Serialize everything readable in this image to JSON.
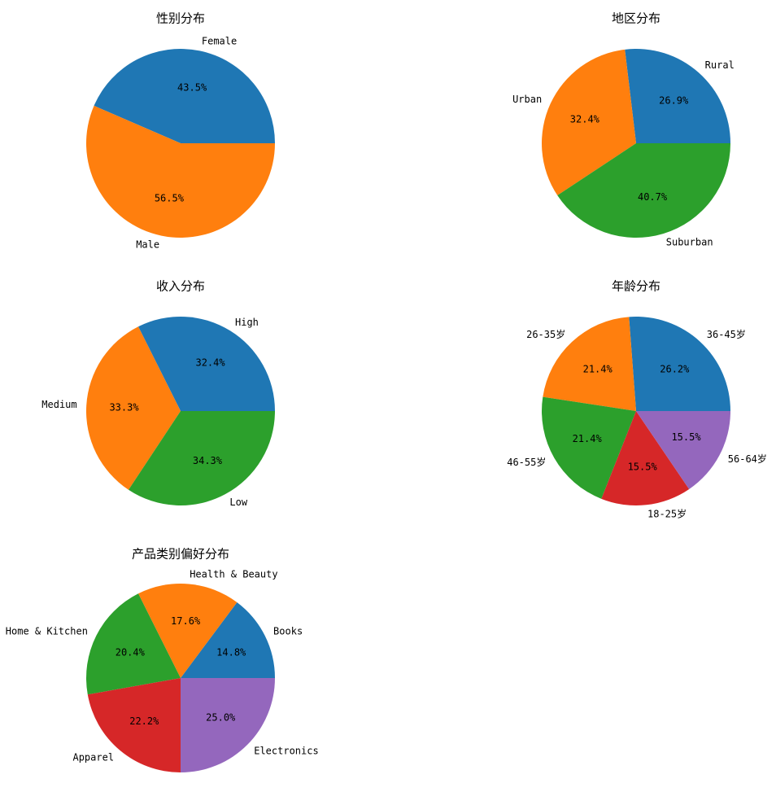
{
  "colors": {
    "blue": "#1f77b4",
    "orange": "#ff7f0e",
    "green": "#2ca02c",
    "red": "#d62728",
    "purple": "#9467bd"
  },
  "chart_data": [
    {
      "type": "pie",
      "title": "性别分布",
      "labels": [
        "Female",
        "Male"
      ],
      "values": [
        43.5,
        56.5
      ],
      "percent_labels": [
        "43.5%",
        "56.5%"
      ],
      "colors": [
        "#1f77b4",
        "#ff7f0e"
      ]
    },
    {
      "type": "pie",
      "title": "地区分布",
      "labels": [
        "Rural",
        "Urban",
        "Suburban"
      ],
      "values": [
        26.9,
        32.4,
        40.7
      ],
      "percent_labels": [
        "26.9%",
        "32.4%",
        "40.7%"
      ],
      "colors": [
        "#1f77b4",
        "#ff7f0e",
        "#2ca02c"
      ]
    },
    {
      "type": "pie",
      "title": "收入分布",
      "labels": [
        "High",
        "Medium",
        "Low"
      ],
      "values": [
        32.4,
        33.3,
        34.3
      ],
      "percent_labels": [
        "32.4%",
        "33.3%",
        "34.3%"
      ],
      "colors": [
        "#1f77b4",
        "#ff7f0e",
        "#2ca02c"
      ]
    },
    {
      "type": "pie",
      "title": "年龄分布",
      "labels": [
        "36-45岁",
        "26-35岁",
        "46-55岁",
        "18-25岁",
        "56-64岁"
      ],
      "values": [
        26.2,
        21.4,
        21.4,
        15.5,
        15.5
      ],
      "percent_labels": [
        "26.2%",
        "21.4%",
        "21.4%",
        "15.5%",
        "15.5%"
      ],
      "colors": [
        "#1f77b4",
        "#ff7f0e",
        "#2ca02c",
        "#d62728",
        "#9467bd"
      ]
    },
    {
      "type": "pie",
      "title": "产品类别偏好分布",
      "labels": [
        "Books",
        "Health & Beauty",
        "Home & Kitchen",
        "Apparel",
        "Electronics"
      ],
      "values": [
        14.8,
        17.6,
        20.4,
        22.2,
        25.0
      ],
      "percent_labels": [
        "14.8%",
        "17.6%",
        "20.4%",
        "22.2%",
        "25.0%"
      ],
      "colors": [
        "#1f77b4",
        "#ff7f0e",
        "#2ca02c",
        "#d62728",
        "#9467bd"
      ]
    }
  ]
}
